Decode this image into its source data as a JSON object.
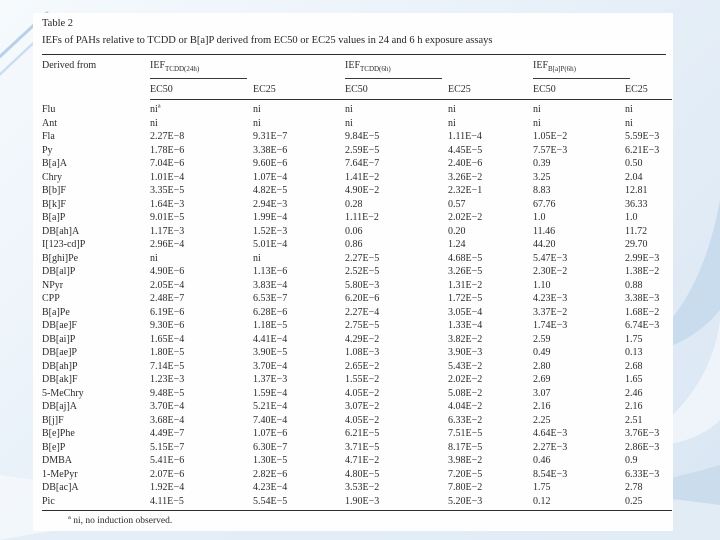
{
  "colors": {
    "slide_bg_top": "#f6fafd",
    "slide_bg_bottom": "#d9e6f3",
    "accent_band": "#bcd3e9",
    "paper_bg": "#fefefe"
  },
  "paper": {
    "title": "Table 2",
    "caption": "IEFs of PAHs relative to TCDD or B[a]P derived from EC50 or EC25 values in 24 and 6 h exposure assays",
    "footnote_marker": "a",
    "footnote_text": "ni, no induction observed."
  },
  "table": {
    "row_header": "Derived from",
    "groups": [
      {
        "label": "IEF",
        "sub": "TCDD(24h)"
      },
      {
        "label": "IEF",
        "sub": "TCDD(6h)"
      },
      {
        "label": "IEF",
        "sub": "B[a]P(6h)"
      }
    ],
    "subheaders": [
      "EC50",
      "EC25",
      "EC50",
      "EC25",
      "EC50",
      "EC25"
    ],
    "rows": [
      {
        "compound": "Flu",
        "values": [
          "ni^a",
          "ni",
          "ni",
          "ni",
          "ni",
          "ni"
        ]
      },
      {
        "compound": "Ant",
        "values": [
          "ni",
          "ni",
          "ni",
          "ni",
          "ni",
          "ni"
        ]
      },
      {
        "compound": "Fla",
        "values": [
          "2.27E−8",
          "9.31E−7",
          "9.84E−5",
          "1.11E−4",
          "1.05E−2",
          "5.59E−3"
        ]
      },
      {
        "compound": "Py",
        "values": [
          "1.78E−6",
          "3.38E−6",
          "2.59E−5",
          "4.45E−5",
          "7.57E−3",
          "6.21E−3"
        ]
      },
      {
        "compound": "B[a]A",
        "values": [
          "7.04E−6",
          "9.60E−6",
          "7.64E−7",
          "2.40E−6",
          "0.39",
          "0.50"
        ]
      },
      {
        "compound": "Chry",
        "values": [
          "1.01E−4",
          "1.07E−4",
          "1.41E−2",
          "3.26E−2",
          "3.25",
          "2.04"
        ]
      },
      {
        "compound": "B[b]F",
        "values": [
          "3.35E−5",
          "4.82E−5",
          "4.90E−2",
          "2.32E−1",
          "8.83",
          "12.81"
        ]
      },
      {
        "compound": "B[k]F",
        "values": [
          "1.64E−3",
          "2.94E−3",
          "0.28",
          "0.57",
          "67.76",
          "36.33"
        ]
      },
      {
        "compound": "B[a]P",
        "values": [
          "9.01E−5",
          "1.99E−4",
          "1.11E−2",
          "2.02E−2",
          "1.0",
          "1.0"
        ]
      },
      {
        "compound": "DB[ah]A",
        "values": [
          "1.17E−3",
          "1.52E−3",
          "0.06",
          "0.20",
          "11.46",
          "11.72"
        ]
      },
      {
        "compound": "I[123-cd]P",
        "values": [
          "2.96E−4",
          "5.01E−4",
          "0.86",
          "1.24",
          "44.20",
          "29.70"
        ]
      },
      {
        "compound": "B[ghi]Pe",
        "values": [
          "ni",
          "ni",
          "2.27E−5",
          "4.68E−5",
          "5.47E−3",
          "2.99E−3"
        ]
      },
      {
        "compound": "DB[al]P",
        "values": [
          "4.90E−6",
          "1.13E−6",
          "2.52E−5",
          "3.26E−5",
          "2.30E−2",
          "1.38E−2"
        ]
      },
      {
        "compound": "NPyr",
        "values": [
          "2.05E−4",
          "3.83E−4",
          "5.80E−3",
          "1.31E−2",
          "1.10",
          "0.88"
        ]
      },
      {
        "compound": "CPP",
        "values": [
          "2.48E−7",
          "6.53E−7",
          "6.20E−6",
          "1.72E−5",
          "4.23E−3",
          "3.38E−3"
        ]
      },
      {
        "compound": "B[a]Pe",
        "values": [
          "6.19E−6",
          "6.28E−6",
          "2.27E−4",
          "3.05E−4",
          "3.37E−2",
          "1.68E−2"
        ]
      },
      {
        "compound": "DB[ae]F",
        "values": [
          "9.30E−6",
          "1.18E−5",
          "2.75E−5",
          "1.33E−4",
          "1.74E−3",
          "6.74E−3"
        ]
      },
      {
        "compound": "DB[ai]P",
        "values": [
          "1.65E−4",
          "4.41E−4",
          "4.29E−2",
          "3.82E−2",
          "2.59",
          "1.75"
        ]
      },
      {
        "compound": "DB[ae]P",
        "values": [
          "1.80E−5",
          "3.90E−5",
          "1.08E−3",
          "3.90E−3",
          "0.49",
          "0.13"
        ]
      },
      {
        "compound": "DB[ah]P",
        "values": [
          "7.14E−5",
          "3.70E−4",
          "2.65E−2",
          "5.43E−2",
          "2.80",
          "2.68"
        ]
      },
      {
        "compound": "DB[ak]F",
        "values": [
          "1.23E−3",
          "1.37E−3",
          "1.55E−2",
          "2.02E−2",
          "2.69",
          "1.65"
        ]
      },
      {
        "compound": "5-MeChry",
        "values": [
          "9.48E−5",
          "1.59E−4",
          "4.05E−2",
          "5.08E−2",
          "3.07",
          "2.46"
        ]
      },
      {
        "compound": "DB[aj]A",
        "values": [
          "3.70E−4",
          "5.21E−4",
          "3.07E−2",
          "4.04E−2",
          "2.16",
          "2.16"
        ]
      },
      {
        "compound": "B[j]F",
        "values": [
          "3.68E−4",
          "7.40E−4",
          "4.05E−2",
          "6.33E−2",
          "2.25",
          "2.51"
        ]
      },
      {
        "compound": "B[e]Phe",
        "values": [
          "4.49E−7",
          "1.07E−6",
          "6.21E−5",
          "7.51E−5",
          "4.64E−3",
          "3.76E−3"
        ]
      },
      {
        "compound": "B[e]P",
        "values": [
          "5.15E−7",
          "6.30E−7",
          "3.71E−5",
          "8.17E−5",
          "2.27E−3",
          "2.86E−3"
        ]
      },
      {
        "compound": "DMBA",
        "values": [
          "5.41E−6",
          "1.30E−5",
          "4.71E−2",
          "3.98E−2",
          "0.46",
          "0.9"
        ]
      },
      {
        "compound": "1-MePyr",
        "values": [
          "2.07E−6",
          "2.82E−6",
          "4.80E−5",
          "7.20E−5",
          "8.54E−3",
          "6.33E−3"
        ]
      },
      {
        "compound": "DB[ac]A",
        "values": [
          "1.92E−4",
          "4.23E−4",
          "3.53E−2",
          "7.80E−2",
          "1.75",
          "2.78"
        ]
      },
      {
        "compound": "Pic",
        "values": [
          "4.11E−5",
          "5.54E−5",
          "1.90E−3",
          "5.20E−3",
          "0.12",
          "0.25"
        ]
      }
    ]
  }
}
